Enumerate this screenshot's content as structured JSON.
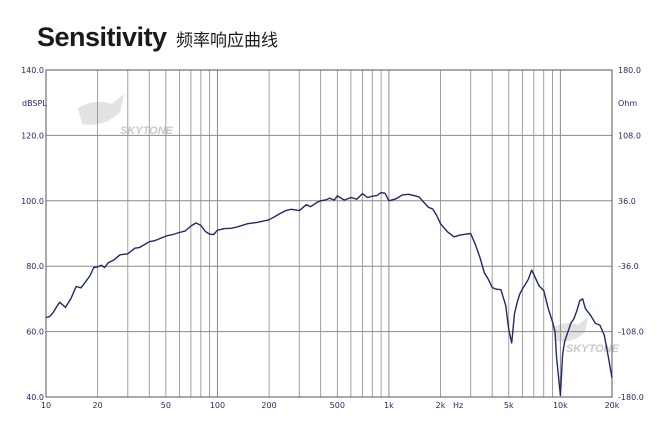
{
  "header": {
    "title": "Sensitivity",
    "subtitle": "频率响应曲线"
  },
  "watermark": "SKYTONE",
  "colors": {
    "curve": "#1f2a6b",
    "grid": "#8a8a8a",
    "axis": "#555555",
    "tick_text": "#1f2a6b"
  },
  "chart_data": {
    "type": "line",
    "x_scale": "log",
    "xlim": [
      10,
      20000
    ],
    "ylim": [
      40,
      140
    ],
    "y2lim": [
      -180,
      180
    ],
    "ylabel": "dBSPL",
    "y2label": "Ohm",
    "xunit": "Hz",
    "grid": true,
    "x_ticks": [
      {
        "v": 10,
        "label": "10"
      },
      {
        "v": 20,
        "label": "20"
      },
      {
        "v": 50,
        "label": "50"
      },
      {
        "v": 100,
        "label": "100"
      },
      {
        "v": 200,
        "label": "200"
      },
      {
        "v": 500,
        "label": "500"
      },
      {
        "v": 1000,
        "label": "1k"
      },
      {
        "v": 2000,
        "label": "2k"
      },
      {
        "v": 5000,
        "label": "5k"
      },
      {
        "v": 10000,
        "label": "10k"
      },
      {
        "v": 20000,
        "label": "20k"
      }
    ],
    "y_ticks": [
      {
        "v": 40,
        "label": "40.0"
      },
      {
        "v": 60,
        "label": "60.0"
      },
      {
        "v": 80,
        "label": "80.0"
      },
      {
        "v": 100,
        "label": "100.0"
      },
      {
        "v": 120,
        "label": "120.0"
      },
      {
        "v": 140,
        "label": "140.0"
      }
    ],
    "y2_ticks": [
      {
        "v": -180,
        "label": "-180.0"
      },
      {
        "v": -108,
        "label": "-108.0"
      },
      {
        "v": -36,
        "label": "-36.0"
      },
      {
        "v": 36,
        "label": "36.0"
      },
      {
        "v": 108,
        "label": "108.0"
      },
      {
        "v": 180,
        "label": "180.0"
      }
    ],
    "series": [
      {
        "x": [
          10,
          10.5,
          11,
          11.5,
          12,
          12.5,
          13,
          14,
          15,
          16,
          17,
          18,
          19,
          20,
          21,
          22,
          23,
          25,
          27,
          30,
          33,
          35,
          38,
          40,
          43,
          45,
          48,
          50,
          55,
          60,
          65,
          70,
          75,
          80,
          85,
          90,
          95,
          100,
          110,
          120,
          130,
          140,
          150,
          170,
          200,
          230,
          250,
          270,
          300,
          330,
          350,
          380,
          400,
          430,
          450,
          480,
          500,
          550,
          600,
          650,
          700,
          750,
          800,
          850,
          900,
          950,
          1000,
          1100,
          1200,
          1300,
          1400,
          1500,
          1600,
          1700,
          1800,
          1900,
          2000,
          2200,
          2400,
          2600,
          2800,
          3000,
          3200,
          3400,
          3600,
          3800,
          4000,
          4200,
          4500,
          4800,
          5000,
          5200,
          5400,
          5600,
          5800,
          6000,
          6200,
          6500,
          6800,
          7000,
          7500,
          8000,
          8500,
          9000,
          9300,
          9500,
          9800,
          10000,
          10300,
          10600,
          11000,
          11500,
          12000,
          12500,
          13000,
          13500,
          14000,
          15000,
          16000,
          17000,
          18000,
          19000,
          20000
        ],
        "y": [
          64.3,
          64.6,
          65.8,
          67.5,
          69.0,
          68.2,
          67.4,
          70.2,
          73.8,
          73.4,
          75.2,
          77.0,
          79.6,
          79.8,
          80.3,
          79.6,
          81.0,
          82.0,
          83.5,
          83.8,
          85.5,
          85.7,
          86.8,
          87.5,
          87.8,
          88.2,
          88.8,
          89.2,
          89.7,
          90.3,
          90.8,
          92.3,
          93.2,
          92.5,
          90.6,
          89.8,
          89.7,
          91.0,
          91.5,
          91.6,
          92.0,
          92.5,
          93.0,
          93.4,
          94.2,
          96.0,
          97.0,
          97.4,
          97.0,
          98.8,
          98.2,
          99.5,
          100.0,
          100.3,
          100.8,
          100.2,
          101.5,
          100.2,
          101.0,
          100.5,
          102.2,
          101.0,
          101.4,
          101.6,
          102.5,
          102.3,
          100.0,
          100.6,
          101.8,
          102.0,
          101.6,
          101.2,
          99.5,
          98.0,
          97.5,
          95.5,
          93.0,
          90.5,
          89.0,
          89.5,
          89.8,
          90.0,
          86.5,
          82.5,
          78.0,
          76.0,
          73.5,
          73.0,
          72.8,
          68.0,
          60.5,
          56.5,
          65.5,
          69.0,
          71.5,
          73.0,
          74.2,
          76.0,
          78.8,
          77.5,
          74.0,
          72.5,
          67.0,
          63.0,
          60.0,
          52.0,
          45.0,
          40.5,
          53.0,
          57.0,
          59.5,
          62.5,
          64.0,
          66.5,
          69.5,
          70.0,
          67.0,
          65.0,
          62.5,
          62.0,
          59.0,
          52.5,
          45.8
        ]
      }
    ]
  }
}
